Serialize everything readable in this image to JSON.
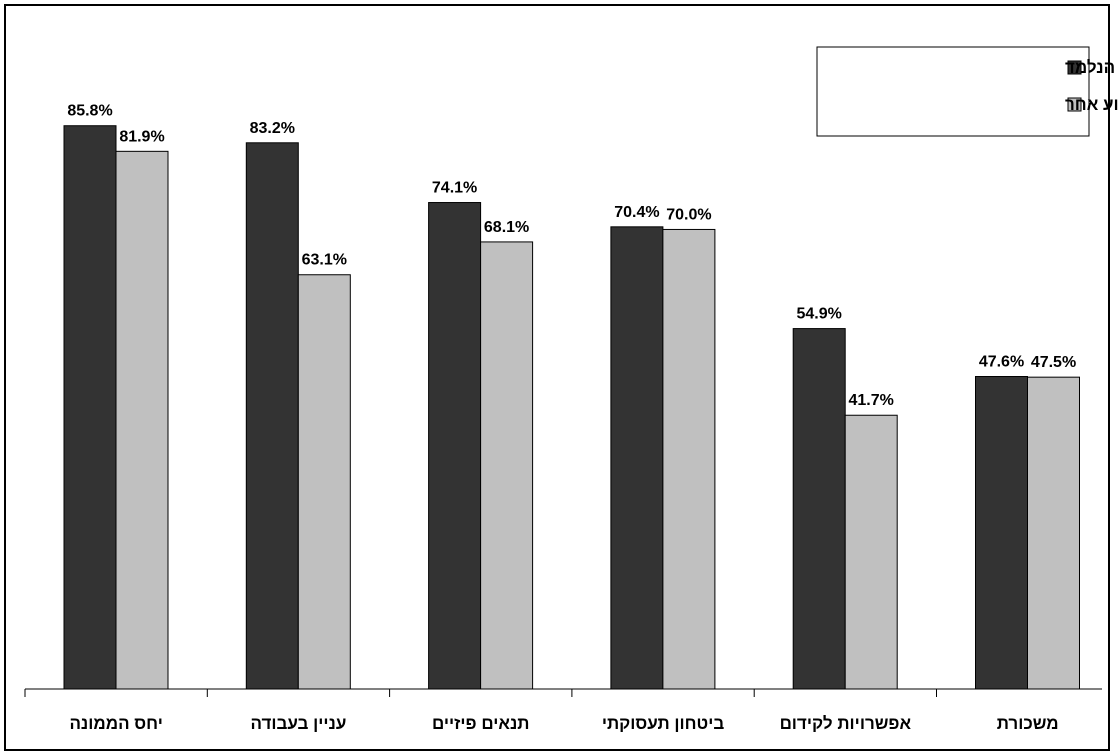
{
  "chart_data": {
    "type": "bar",
    "categories": [
      "יחס הממונה",
      "עניין בעבודה",
      "תנאים פיזיים",
      "ביטחון תעסוקתי",
      "אפשרויות לקידום",
      "משכורת"
    ],
    "series": [
      {
        "name": "עובדים במקצוע הנלמד",
        "values": [
          85.8,
          83.2,
          74.1,
          70.4,
          54.9,
          47.6
        ],
        "labels": [
          "85.8%",
          "83.2%",
          "74.1%",
          "70.4%",
          "54.9%",
          "47.6%"
        ],
        "color": "#333333"
      },
      {
        "name": "עובדים במקצוע אחר",
        "values": [
          81.9,
          63.1,
          68.1,
          70.0,
          41.7,
          47.5
        ],
        "labels": [
          "81.9%",
          "63.1%",
          "68.1%",
          "70.0%",
          "41.7%",
          "47.5%"
        ],
        "color": "#c0c0c0"
      }
    ],
    "ylim": [
      0,
      100
    ],
    "grid": false,
    "legend_position": "top-right"
  }
}
